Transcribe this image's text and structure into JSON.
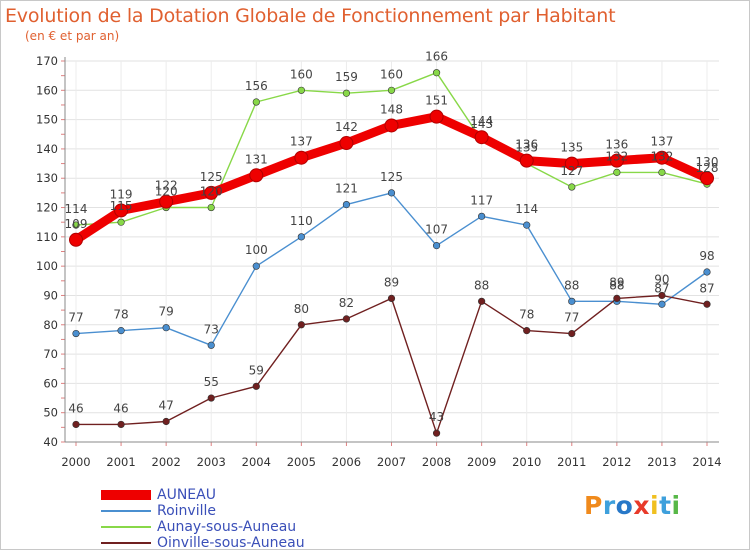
{
  "chart_data": {
    "type": "line",
    "title": "Evolution de la Dotation Globale de Fonctionnement par Habitant",
    "subtitle": "(en € et par an)",
    "x": [
      "2000",
      "2001",
      "2002",
      "2003",
      "2004",
      "2005",
      "2006",
      "2007",
      "2008",
      "2009",
      "2010",
      "2011",
      "2012",
      "2013",
      "2014"
    ],
    "ylim": [
      40,
      170
    ],
    "yticks": [
      40,
      50,
      60,
      70,
      80,
      90,
      100,
      110,
      120,
      130,
      140,
      150,
      160,
      170
    ],
    "grid": true,
    "legend_position": "bottom-left",
    "series": [
      {
        "name": "AUNEAU",
        "color": "#ee0000",
        "values": [
          109,
          119,
          122,
          125,
          131,
          137,
          142,
          148,
          151,
          144,
          136,
          135,
          136,
          137,
          130
        ]
      },
      {
        "name": "Roinville",
        "color": "#4a8fd0",
        "values": [
          77,
          78,
          79,
          73,
          100,
          110,
          121,
          125,
          107,
          117,
          114,
          88,
          88,
          87,
          98
        ]
      },
      {
        "name": "Aunay-sous-Auneau",
        "color": "#88d848",
        "values": [
          114,
          115,
          120,
          120,
          156,
          160,
          159,
          160,
          166,
          143,
          135,
          127,
          132,
          132,
          128
        ]
      },
      {
        "name": "Oinville-sous-Auneau",
        "color": "#702020",
        "values": [
          46,
          46,
          47,
          55,
          59,
          80,
          82,
          89,
          43,
          88,
          78,
          77,
          89,
          90,
          87
        ]
      }
    ]
  },
  "logo": {
    "text": "Proxiti",
    "letter_colors": [
      "#f08a1c",
      "#3ea0dc",
      "#2878c8",
      "#e83a2a",
      "#f0c020",
      "#3ea0dc",
      "#58b848"
    ]
  }
}
